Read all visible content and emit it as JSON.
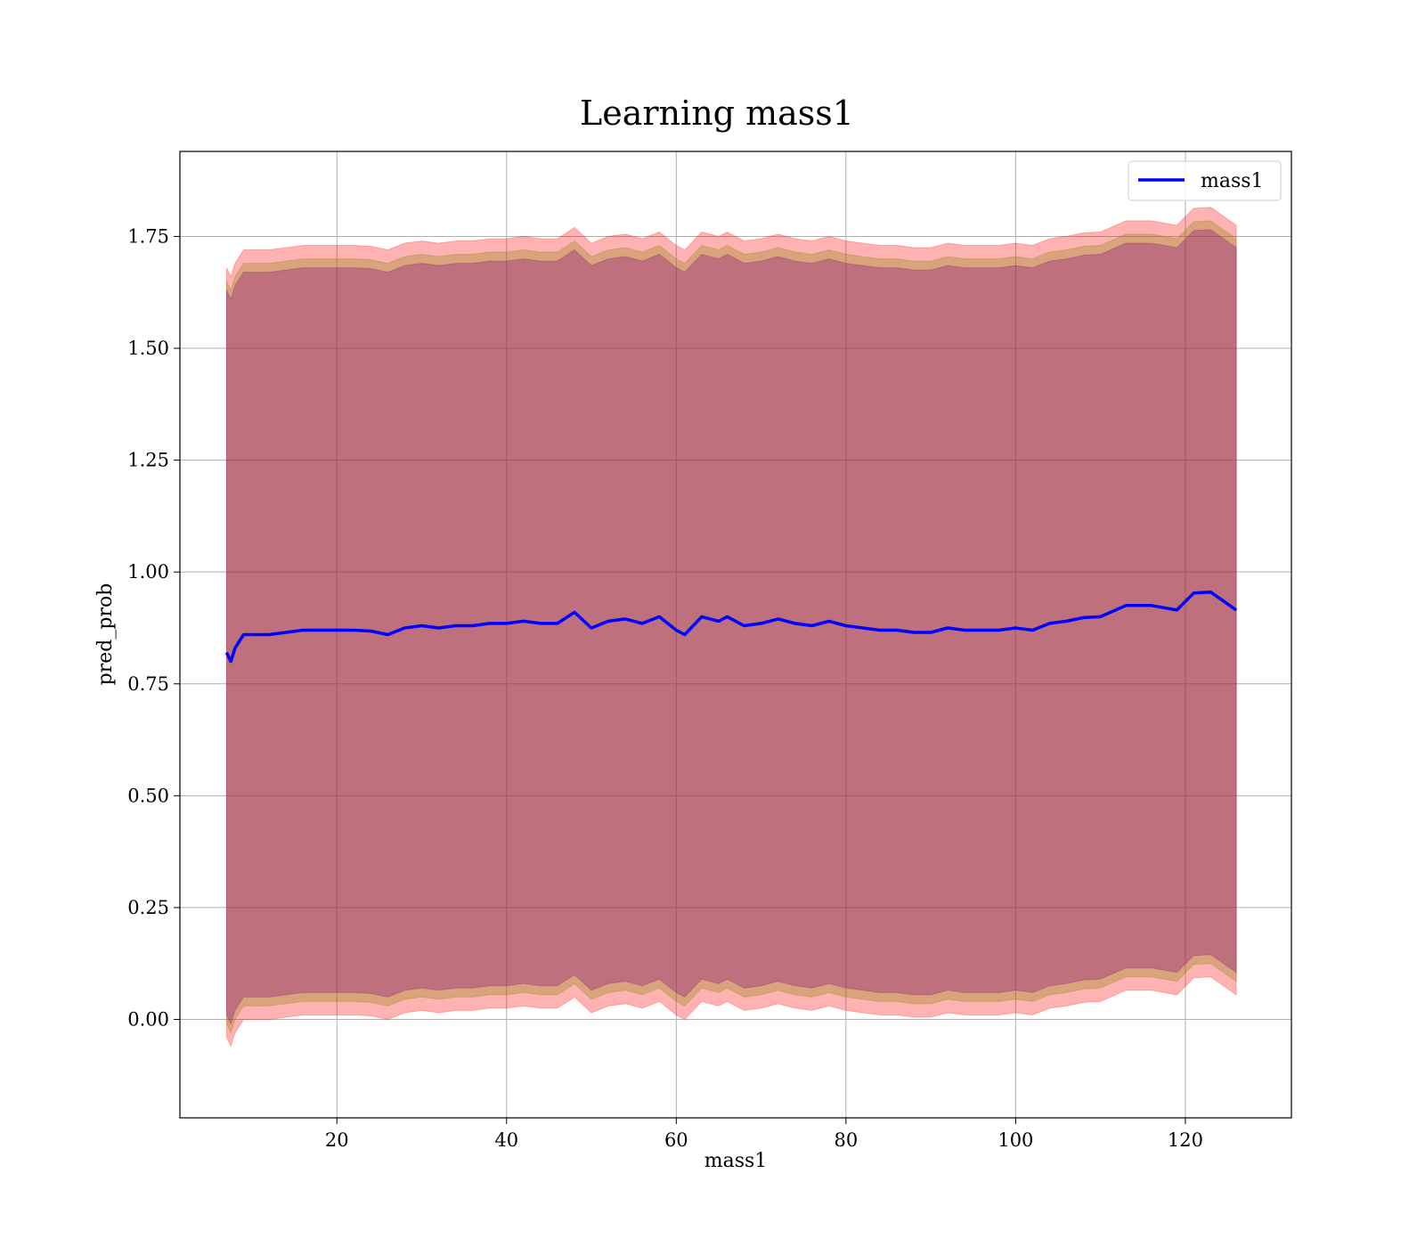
{
  "chart_data": {
    "type": "line",
    "title": "Learning mass1",
    "xlabel": "mass1",
    "ylabel": "pred_prob",
    "xlim": [
      1.5,
      132.5
    ],
    "ylim": [
      -0.22,
      1.94
    ],
    "x_ticks": [
      20,
      40,
      60,
      80,
      100,
      120
    ],
    "x_tick_labels": [
      "20",
      "40",
      "60",
      "80",
      "100",
      "120"
    ],
    "y_ticks": [
      0.0,
      0.25,
      0.5,
      0.75,
      1.0,
      1.25,
      1.5,
      1.75
    ],
    "y_tick_labels": [
      "0.00",
      "0.25",
      "0.50",
      "0.75",
      "1.00",
      "1.25",
      "1.50",
      "1.75"
    ],
    "grid": true,
    "legend_position": "top-right",
    "colors": {
      "line": "#0000ff",
      "band_outer": "#ff0000",
      "band_middle": "#808000",
      "band_inner": "#800080"
    },
    "series": [
      {
        "name": "mass1",
        "x": [
          7,
          7.5,
          8,
          9,
          10,
          12,
          14,
          16,
          18,
          20,
          22,
          24,
          26,
          28,
          30,
          32,
          34,
          36,
          38,
          40,
          42,
          44,
          46,
          48,
          50,
          52,
          54,
          56,
          58,
          60,
          61,
          63,
          65,
          66,
          68,
          70,
          72,
          74,
          76,
          78,
          80,
          82,
          84,
          86,
          88,
          90,
          92,
          94,
          96,
          98,
          100,
          102,
          104,
          106,
          108,
          110,
          113,
          116,
          119,
          121,
          123,
          126
        ],
        "y": [
          0.82,
          0.8,
          0.83,
          0.86,
          0.86,
          0.86,
          0.865,
          0.87,
          0.87,
          0.87,
          0.87,
          0.868,
          0.86,
          0.875,
          0.88,
          0.875,
          0.88,
          0.88,
          0.885,
          0.885,
          0.89,
          0.885,
          0.885,
          0.91,
          0.875,
          0.89,
          0.895,
          0.885,
          0.9,
          0.87,
          0.86,
          0.9,
          0.89,
          0.9,
          0.88,
          0.885,
          0.895,
          0.885,
          0.88,
          0.89,
          0.88,
          0.875,
          0.87,
          0.87,
          0.865,
          0.865,
          0.875,
          0.87,
          0.87,
          0.87,
          0.875,
          0.87,
          0.885,
          0.89,
          0.898,
          0.9,
          0.925,
          0.925,
          0.915,
          0.953,
          0.955,
          0.915
        ]
      }
    ],
    "bands": [
      {
        "offset": 0.86,
        "color": "#ff0000",
        "opacity": 0.3
      },
      {
        "offset": 0.83,
        "color": "#808000",
        "opacity": 0.3
      },
      {
        "offset": 0.81,
        "color": "#800080",
        "opacity": 0.3
      }
    ]
  }
}
